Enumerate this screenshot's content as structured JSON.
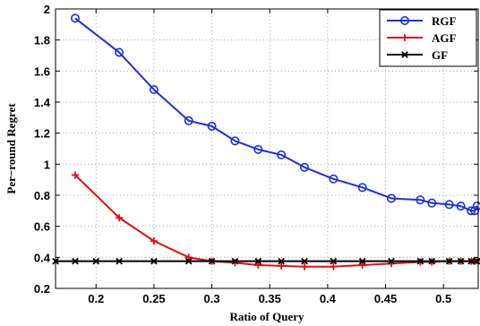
{
  "chart_data": {
    "type": "line",
    "title": "",
    "xlabel": "Ratio of Query",
    "ylabel": "Per−round Regret",
    "xlim": [
      0.165,
      0.53
    ],
    "ylim": [
      0.2,
      2.0
    ],
    "xticks": [
      0.2,
      0.25,
      0.3,
      0.35,
      0.4,
      0.45,
      0.5
    ],
    "xtick_labels": [
      "0.2",
      "0.25",
      "0.3",
      "0.35",
      "0.4",
      "0.45",
      "0.5"
    ],
    "yticks": [
      0.2,
      0.4,
      0.6,
      0.8,
      1.0,
      1.2,
      1.4,
      1.6,
      1.8,
      2.0
    ],
    "ytick_labels": [
      "0.2",
      "0.4",
      "0.6",
      "0.8",
      "1",
      "1.2",
      "1.4",
      "1.6",
      "1.8",
      "2"
    ],
    "grid": true,
    "legend_position": "top-right",
    "series": [
      {
        "name": "RGF",
        "color": "#1f2fe0",
        "marker": "circle",
        "x": [
          0.182,
          0.22,
          0.25,
          0.28,
          0.3,
          0.32,
          0.34,
          0.36,
          0.38,
          0.405,
          0.43,
          0.455,
          0.48,
          0.49,
          0.505,
          0.515,
          0.524,
          0.527,
          0.529
        ],
        "y": [
          1.94,
          1.72,
          1.48,
          1.28,
          1.245,
          1.15,
          1.095,
          1.06,
          0.98,
          0.905,
          0.85,
          0.78,
          0.77,
          0.75,
          0.74,
          0.73,
          0.7,
          0.7,
          0.73
        ]
      },
      {
        "name": "AGF",
        "color": "#e01010",
        "marker": "plus",
        "x": [
          0.182,
          0.22,
          0.25,
          0.28,
          0.3,
          0.32,
          0.34,
          0.36,
          0.38,
          0.405,
          0.43,
          0.455,
          0.48,
          0.49,
          0.505,
          0.515,
          0.524,
          0.527,
          0.529
        ],
        "y": [
          0.93,
          0.655,
          0.505,
          0.4,
          0.375,
          0.365,
          0.35,
          0.345,
          0.34,
          0.34,
          0.35,
          0.36,
          0.37,
          0.37,
          0.375,
          0.375,
          0.375,
          0.375,
          0.378
        ]
      },
      {
        "name": "GF",
        "color": "#000000",
        "marker": "x",
        "x": [
          0.165,
          0.182,
          0.2,
          0.22,
          0.25,
          0.28,
          0.3,
          0.32,
          0.34,
          0.36,
          0.38,
          0.405,
          0.43,
          0.455,
          0.48,
          0.49,
          0.505,
          0.515,
          0.524,
          0.529
        ],
        "y": [
          0.375,
          0.375,
          0.375,
          0.375,
          0.375,
          0.375,
          0.375,
          0.375,
          0.375,
          0.375,
          0.375,
          0.375,
          0.375,
          0.375,
          0.375,
          0.375,
          0.375,
          0.375,
          0.375,
          0.375
        ]
      }
    ]
  }
}
